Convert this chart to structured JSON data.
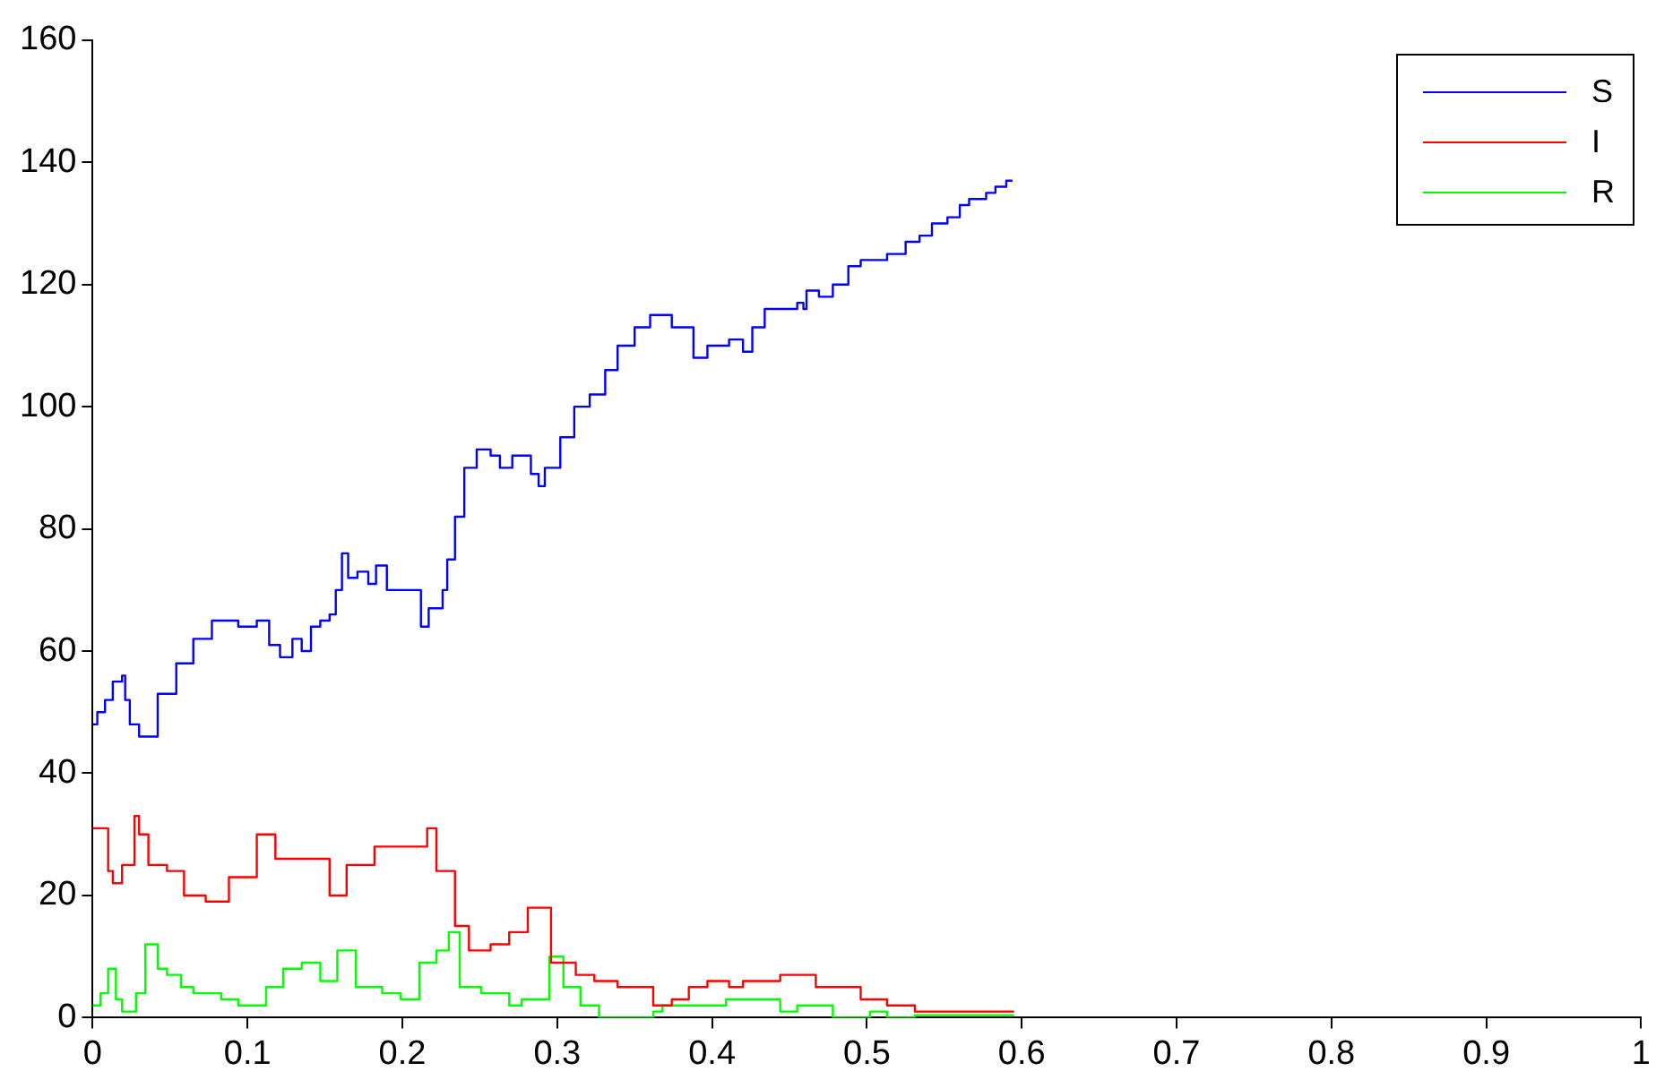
{
  "chart_data": {
    "type": "step",
    "xlim": [
      0,
      1
    ],
    "xticks": [
      0,
      0.1,
      0.2,
      0.3,
      0.4,
      0.5,
      0.6,
      0.7,
      0.8,
      0.9,
      1
    ],
    "ylim": [
      0,
      160
    ],
    "yticks": [
      0,
      20,
      40,
      60,
      80,
      100,
      120,
      140,
      160
    ],
    "grid": false,
    "legend": "top right",
    "line_style": "solid",
    "marker": "none",
    "series": [
      {
        "name": "S",
        "color": "#0000ff",
        "x": [
          0,
          0.003,
          0.008,
          0.013,
          0.019,
          0.021,
          0.024,
          0.03,
          0.042,
          0.054,
          0.065,
          0.077,
          0.094,
          0.106,
          0.114,
          0.121,
          0.129,
          0.135,
          0.141,
          0.147,
          0.153,
          0.157,
          0.161,
          0.165,
          0.171,
          0.178,
          0.183,
          0.19,
          0.212,
          0.217,
          0.226,
          0.229,
          0.234,
          0.24,
          0.248,
          0.257,
          0.263,
          0.271,
          0.283,
          0.288,
          0.292,
          0.302,
          0.311,
          0.321,
          0.331,
          0.339,
          0.35,
          0.36,
          0.374,
          0.388,
          0.397,
          0.411,
          0.42,
          0.426,
          0.434,
          0.455,
          0.459,
          0.461,
          0.469,
          0.478,
          0.488,
          0.496,
          0.513,
          0.525,
          0.534,
          0.542,
          0.552,
          0.56,
          0.566,
          0.577,
          0.583,
          0.59,
          0.594
        ],
        "values": [
          48,
          50,
          52,
          55,
          56,
          52,
          48,
          46,
          53,
          58,
          62,
          65,
          64,
          65,
          61,
          59,
          62,
          60,
          64,
          65,
          66,
          70,
          76,
          72,
          73,
          71,
          74,
          70,
          64,
          67,
          70,
          75,
          82,
          90,
          93,
          92,
          90,
          92,
          89,
          87,
          90,
          95,
          100,
          102,
          106,
          110,
          113,
          115,
          113,
          108,
          110,
          111,
          109,
          113,
          116,
          117,
          116,
          119,
          118,
          120,
          123,
          124,
          125,
          127,
          128,
          130,
          131,
          133,
          134,
          135,
          136,
          137,
          137
        ]
      },
      {
        "name": "I",
        "color": "#ff0000",
        "x": [
          0,
          0.01,
          0.013,
          0.019,
          0.022,
          0.027,
          0.03,
          0.036,
          0.048,
          0.059,
          0.073,
          0.088,
          0.106,
          0.118,
          0.141,
          0.153,
          0.164,
          0.182,
          0.216,
          0.222,
          0.234,
          0.243,
          0.257,
          0.269,
          0.281,
          0.29,
          0.296,
          0.312,
          0.324,
          0.339,
          0.362,
          0.374,
          0.385,
          0.397,
          0.411,
          0.42,
          0.444,
          0.467,
          0.496,
          0.513,
          0.531,
          0.595
        ],
        "values": [
          31,
          24,
          22,
          25,
          25,
          33,
          30,
          25,
          24,
          20,
          19,
          23,
          30,
          26,
          26,
          20,
          25,
          28,
          31,
          24,
          15,
          11,
          12,
          14,
          18,
          18,
          9,
          7,
          6,
          5,
          2,
          3,
          5,
          6,
          5,
          6,
          7,
          5,
          3,
          2,
          1,
          1
        ]
      },
      {
        "name": "R",
        "color": "#00ff00",
        "x": [
          0,
          0.005,
          0.01,
          0.015,
          0.019,
          0.028,
          0.034,
          0.042,
          0.048,
          0.057,
          0.065,
          0.083,
          0.094,
          0.112,
          0.123,
          0.135,
          0.147,
          0.158,
          0.17,
          0.187,
          0.199,
          0.211,
          0.222,
          0.23,
          0.237,
          0.251,
          0.269,
          0.277,
          0.295,
          0.304,
          0.315,
          0.327,
          0.362,
          0.368,
          0.391,
          0.409,
          0.42,
          0.432,
          0.444,
          0.455,
          0.478,
          0.502,
          0.513,
          0.531,
          0.595
        ],
        "values": [
          2,
          4,
          8,
          3,
          1,
          4,
          12,
          8,
          7,
          5,
          4,
          3,
          2,
          5,
          8,
          9,
          6,
          11,
          5,
          4,
          3,
          9,
          11,
          14,
          5,
          4,
          2,
          3,
          10,
          5,
          2,
          0,
          1,
          2,
          2,
          3,
          3,
          3,
          1,
          2,
          0,
          1,
          0,
          0.4,
          0.4
        ]
      }
    ]
  }
}
